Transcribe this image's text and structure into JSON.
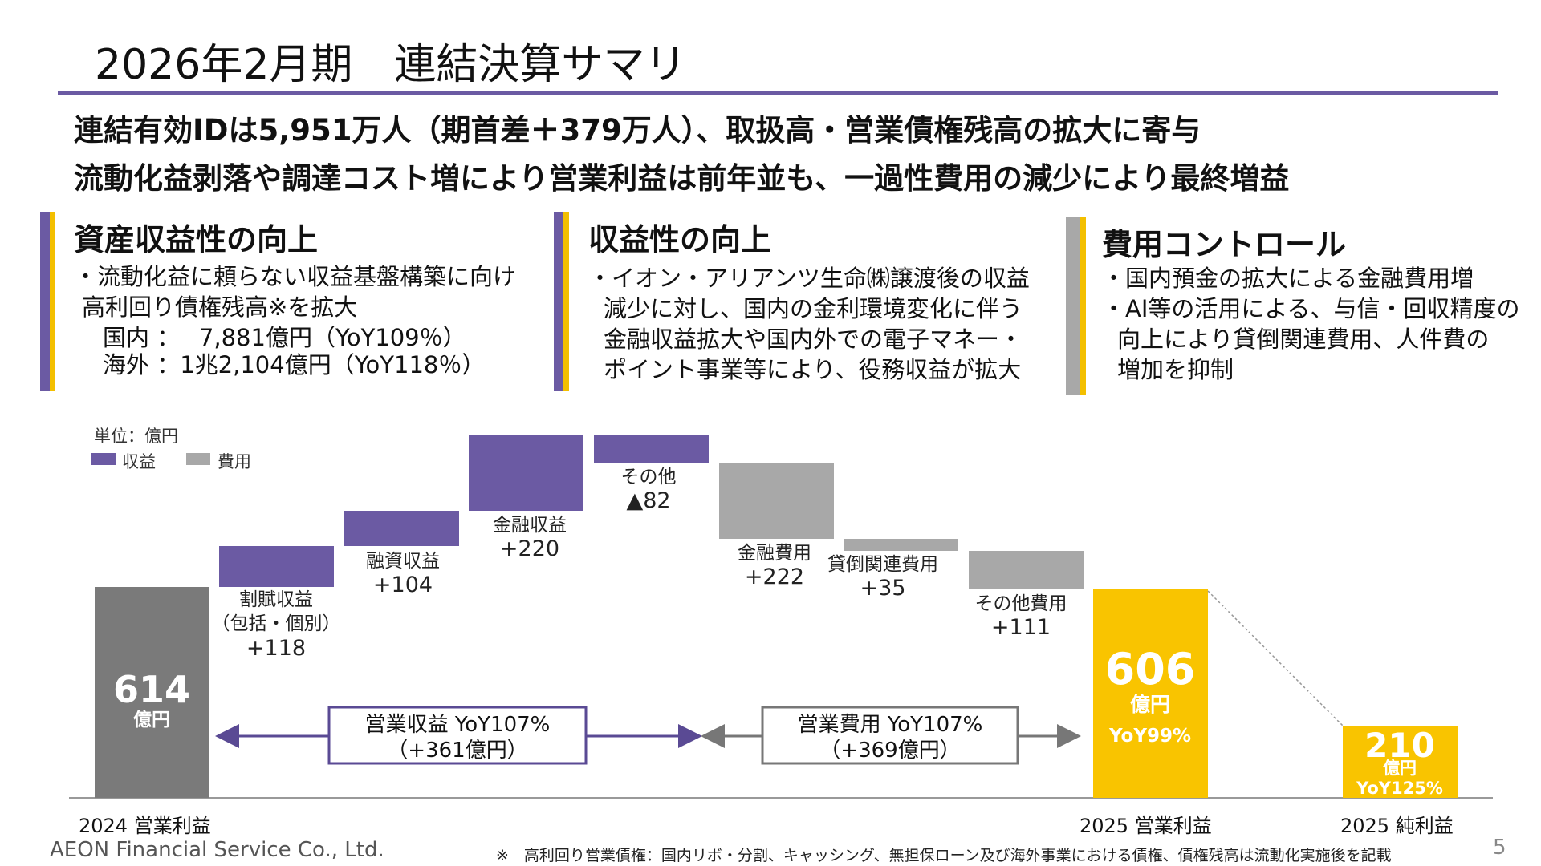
{
  "title": "2026年2月期　連結決算サマリ",
  "headlines": [
    "連結有効IDは5,951万人（期首差＋379万人）、取扱高・営業債権残高の拡大に寄与",
    "流動化益剥落や調達コスト増により営業利益は前年並も、一過性費用の減少により最終増益"
  ],
  "panels": [
    {
      "title": "資産収益性の向上",
      "lines": [
        "・流動化益に頼らない収益基盤構築に向け",
        "高利回り債権残高※を拡大",
        "国内 ：　 7,881億円（YoY109％）",
        "海外 ：1兆2,104億円（YoY118％）"
      ]
    },
    {
      "title": "収益性の向上",
      "lines": [
        "・イオン・アリアンツ生命㈱譲渡後の収益",
        "減少に対し、国内の金利環境変化に伴う",
        "金融収益拡大や国内外での電子マネー・",
        "ポイント事業等により、役務収益が拡大"
      ]
    },
    {
      "title": "費用コントロール",
      "lines": [
        "・国内預金の拡大による金融費用増",
        "・AI等の活用による、与信・回収精度の",
        "向上により貸倒関連費用、人件費の",
        "増加を抑制"
      ]
    }
  ],
  "colors": {
    "revenue": "#6b5aa3",
    "expense": "#a8a8a8",
    "base": "#7a7a7a",
    "highlight": "#f9c400",
    "accent_yellow": "#f3bf00"
  },
  "chart_data": {
    "type": "bar",
    "subtype": "waterfall",
    "unit_label": "単位：億円",
    "legend": [
      {
        "name": "収益",
        "color": "#6b5aa3"
      },
      {
        "name": "費用",
        "color": "#a8a8a8"
      }
    ],
    "steps": [
      {
        "key": "start",
        "kind": "total",
        "value": 614,
        "value_text": "614",
        "unit_text": "億円"
      },
      {
        "key": "installment",
        "kind": "revenue",
        "value": 118,
        "label_lines": [
          "割賦収益",
          "（包括・個別）"
        ],
        "value_text": "+118"
      },
      {
        "key": "loan",
        "kind": "revenue",
        "value": 104,
        "label_lines": [
          "融資収益"
        ],
        "value_text": "+104"
      },
      {
        "key": "finrev",
        "kind": "revenue",
        "value": 220,
        "label_lines": [
          "金融収益"
        ],
        "value_text": "+220"
      },
      {
        "key": "other",
        "kind": "revenue",
        "value": -82,
        "label_lines": [
          "その他"
        ],
        "value_text": "▲82"
      },
      {
        "key": "fincost",
        "kind": "expense",
        "value": -222,
        "label_lines": [
          "金融費用"
        ],
        "value_text": "+222"
      },
      {
        "key": "badloan",
        "kind": "expense",
        "value": -35,
        "label_lines": [
          "貸倒関連費用"
        ],
        "value_text": "+35"
      },
      {
        "key": "othercost",
        "kind": "expense",
        "value": -111,
        "label_lines": [
          "その他費用"
        ],
        "value_text": "+111"
      },
      {
        "key": "op2025",
        "kind": "total",
        "value": 606,
        "value_text": "606",
        "unit_text": "億円",
        "yoy_text": "YoY99%"
      },
      {
        "key": "net2025",
        "kind": "total",
        "value": 210,
        "value_text": "210",
        "unit_text": "億円",
        "yoy_text": "YoY125%"
      }
    ],
    "x_labels": {
      "start": "2024  営業利益",
      "op2025": "2025 営業利益",
      "net2025": "2025 純利益"
    },
    "spans": [
      {
        "label": "営業収益  YoY107%",
        "sub": "（+361億円）"
      },
      {
        "label": "営業費用  YoY107%",
        "sub": "（+369億円）"
      }
    ]
  },
  "footer": {
    "company": "AEON Financial Service Co., Ltd.",
    "footnote": "※　高利回り営業債権：国内リボ・分割、キャッシング、無担保ローン及び海外事業における債権、債権残高は流動化実施後を記載",
    "page": "5"
  }
}
